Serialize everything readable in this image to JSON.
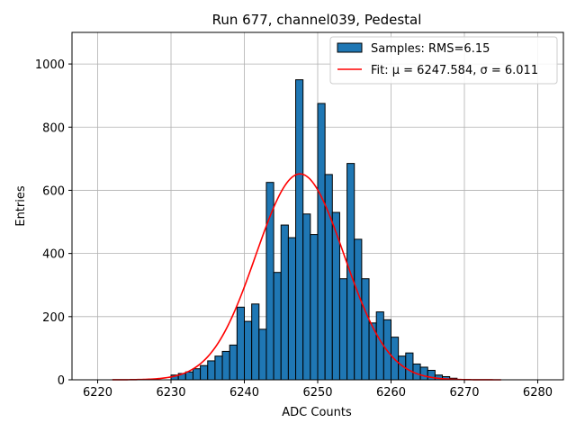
{
  "chart_data": {
    "type": "bar",
    "title": "Run 677, channel039, Pedestal",
    "xlabel": "ADC Counts",
    "ylabel": "Entries",
    "xlim": [
      6216.5,
      6283.5
    ],
    "ylim": [
      0,
      1100
    ],
    "grid": true,
    "xticks": [
      6220,
      6230,
      6240,
      6250,
      6260,
      6270,
      6280
    ],
    "yticks": [
      0,
      200,
      400,
      600,
      800,
      1000
    ],
    "bin_width": 1,
    "bins_start": 6230,
    "values": [
      15,
      20,
      25,
      35,
      45,
      60,
      75,
      90,
      110,
      230,
      185,
      240,
      160,
      625,
      340,
      490,
      450,
      950,
      525,
      460,
      875,
      650,
      530,
      320,
      685,
      445,
      320,
      180,
      215,
      190,
      135,
      75,
      85,
      50,
      40,
      30,
      15,
      10,
      5
    ],
    "fit": {
      "mu": 6247.584,
      "sigma": 6.011,
      "amplitude": 652,
      "x_range": [
        6222,
        6275
      ]
    },
    "legend": {
      "position": "top-right",
      "entries": [
        {
          "label": "Samples: RMS=6.15",
          "kind": "patch",
          "color": "#1f77b4"
        },
        {
          "label": "Fit: μ = 6247.584, σ = 6.011",
          "kind": "line",
          "color": "#ff0000"
        }
      ]
    },
    "colors": {
      "bar": "#1f77b4",
      "bar_edge": "#000000",
      "fit": "#ff0000",
      "grid": "#b0b0b0"
    }
  }
}
